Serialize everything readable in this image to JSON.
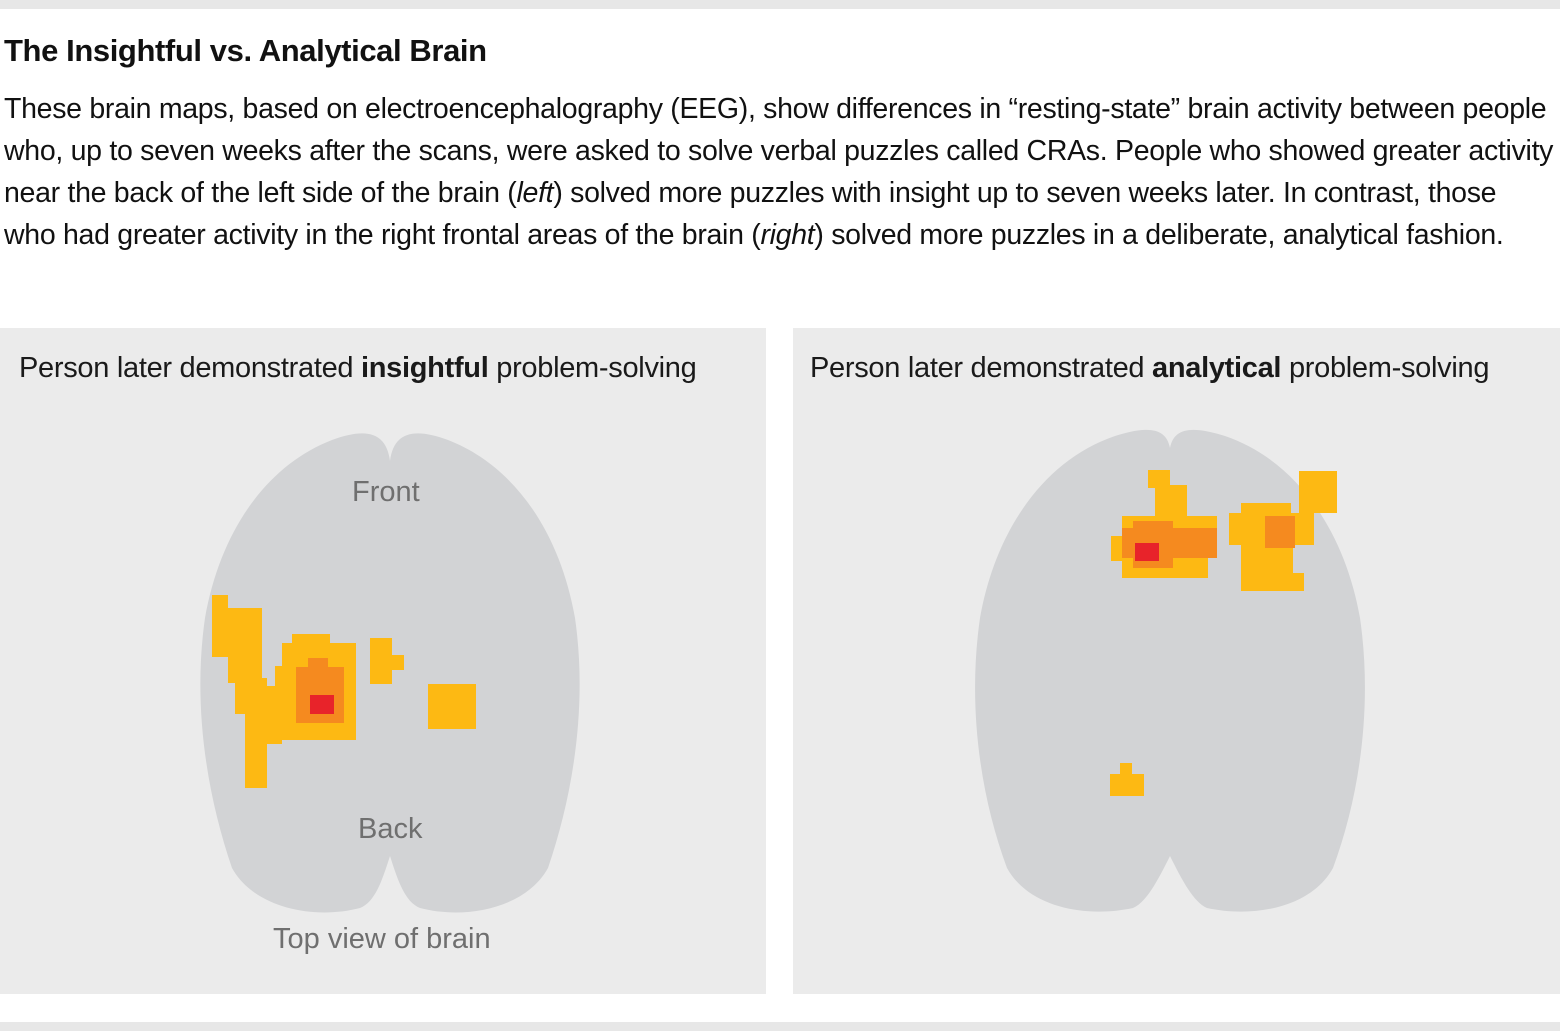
{
  "title": "The Insightful vs. Analytical Brain",
  "description": {
    "part1": "These brain maps, based on electroencephalography (EEG), show differences in “resting-state” brain activity between people who, up to seven weeks after the scans, were asked to solve verbal puzzles called CRAs. People who showed greater activity near the back of the left side of the brain (",
    "em1": "left",
    "part2": ") solved more puzzles with insight up to seven weeks later. In contrast, those who had greater activity in the right frontal areas of the brain (",
    "em2": "right",
    "part3": ") solved more puzzles in a deliberate, analytical fashion."
  },
  "panels": {
    "left": {
      "label_pre": "Person later demonstrated ",
      "label_bold": "insightful",
      "label_post": " problem-solving"
    },
    "right": {
      "label_pre": "Person later demonstrated ",
      "label_bold": "analytical",
      "label_post": " problem-solving"
    }
  },
  "annotations": {
    "front": "Front",
    "back": "Back",
    "caption": "Top view of brain"
  },
  "colors": {
    "panel_bg": "#ebebeb",
    "brain": "#d2d3d5",
    "activity_low": "#fdb913",
    "activity_mid": "#f58a1f",
    "activity_high": "#e8232a"
  }
}
